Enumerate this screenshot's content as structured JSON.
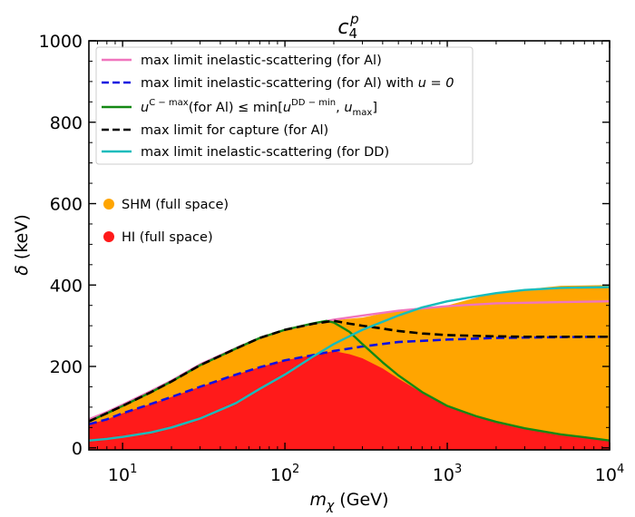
{
  "chart_data": {
    "type": "scatter",
    "title": {
      "base": "c",
      "sub": "4",
      "sup": "p"
    },
    "xlabel": {
      "symbol": "m",
      "sub": "χ",
      "unit": " (GeV)"
    },
    "ylabel": {
      "symbol": "δ",
      "unit": " (keV)"
    },
    "xscale": "log",
    "xlim": [
      6.2,
      10000
    ],
    "ylim": [
      -5,
      1000
    ],
    "yticks": [
      0,
      200,
      400,
      600,
      800,
      1000
    ],
    "xticks": [
      {
        "value": 10,
        "base": "10",
        "exp": "1"
      },
      {
        "value": 100,
        "base": "10",
        "exp": "2"
      },
      {
        "value": 1000,
        "base": "10",
        "exp": "3"
      },
      {
        "value": 10000,
        "base": "10",
        "exp": "4"
      }
    ],
    "series": [
      {
        "name": "max limit inelastic-scattering (for Al)",
        "style": "solid",
        "color": "#f075be",
        "x": [
          6.2,
          8,
          10,
          15,
          20,
          30,
          50,
          70,
          100,
          150,
          200,
          300,
          500,
          1000,
          2000,
          5000,
          10000
        ],
        "y": [
          70,
          88,
          106,
          140,
          165,
          205,
          245,
          270,
          290,
          305,
          315,
          325,
          337,
          348,
          355,
          358,
          360
        ]
      },
      {
        "name": "max limit inelastic-scattering (for Al) with",
        "math": "u = 0",
        "style": "dashed",
        "color": "#1010e0",
        "x": [
          6.2,
          8,
          10,
          15,
          20,
          30,
          50,
          70,
          100,
          150,
          200,
          300,
          500,
          1000,
          2000,
          5000,
          10000
        ],
        "y": [
          58,
          70,
          85,
          108,
          125,
          150,
          180,
          198,
          215,
          228,
          238,
          249,
          260,
          266,
          270,
          272,
          273
        ]
      },
      {
        "name": "(for Al) ≤ min[",
        "math_prefix": "u",
        "math_prefix_sup": "C − max",
        "math_suffix": "]",
        "style": "solid",
        "color": "#138813",
        "x": [
          6.2,
          8,
          10,
          15,
          20,
          30,
          50,
          70,
          100,
          150,
          180,
          200,
          250,
          300,
          400,
          500,
          700,
          1000,
          1500,
          2000,
          3000,
          5000,
          7000,
          10000
        ],
        "y": [
          65,
          85,
          103,
          137,
          163,
          203,
          244,
          270,
          290,
          306,
          312,
          308,
          285,
          255,
          210,
          178,
          137,
          103,
          78,
          64,
          48,
          33,
          26,
          18
        ]
      },
      {
        "name": "max limit for capture (for Al)",
        "style": "dashed",
        "color": "#000000",
        "x": [
          6.2,
          8,
          10,
          15,
          20,
          30,
          50,
          70,
          100,
          150,
          200,
          250,
          300,
          400,
          500,
          700,
          1000,
          1500,
          2000,
          3000,
          5000,
          10000
        ],
        "y": [
          65,
          85,
          103,
          137,
          163,
          203,
          244,
          270,
          290,
          305,
          312,
          305,
          300,
          293,
          287,
          281,
          277,
          275,
          274,
          273,
          273,
          273
        ]
      },
      {
        "name": "max limit inelastic-scattering (for DD)",
        "style": "solid",
        "color": "#17bcbc",
        "x": [
          6.2,
          8,
          10,
          15,
          20,
          30,
          50,
          70,
          100,
          150,
          200,
          300,
          500,
          700,
          1000,
          1500,
          2000,
          3000,
          5000,
          10000
        ],
        "y": [
          18,
          22,
          27,
          38,
          50,
          72,
          110,
          145,
          180,
          225,
          255,
          290,
          325,
          345,
          360,
          372,
          380,
          388,
          393,
          395
        ]
      }
    ],
    "regions": [
      {
        "name": "SHM (full space)",
        "color": "#ffa500",
        "upper": {
          "x": [
            6.2,
            8,
            10,
            15,
            20,
            30,
            50,
            70,
            100,
            150,
            180,
            300,
            500,
            1000,
            2000,
            5000,
            10000
          ],
          "y": [
            70,
            88,
            106,
            140,
            165,
            205,
            245,
            270,
            290,
            305,
            312,
            320,
            338,
            350,
            382,
            398,
            400
          ]
        }
      },
      {
        "name": "HI (full space)",
        "color": "#ff1a1a",
        "upper": {
          "x": [
            6.2,
            8,
            10,
            15,
            20,
            30,
            50,
            70,
            100,
            150,
            200,
            250,
            300,
            400,
            500,
            700,
            1000,
            1500,
            2000,
            3000,
            5000,
            7000,
            10000
          ],
          "y": [
            58,
            70,
            85,
            108,
            125,
            150,
            180,
            198,
            215,
            228,
            238,
            230,
            220,
            195,
            170,
            135,
            103,
            78,
            64,
            48,
            33,
            26,
            18
          ]
        }
      }
    ],
    "legend_position": "top-left"
  }
}
